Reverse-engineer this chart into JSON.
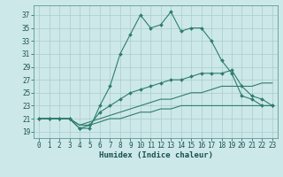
{
  "title": "",
  "xlabel": "Humidex (Indice chaleur)",
  "ylabel": "",
  "bg_color": "#cde8e8",
  "line_color": "#2e7d6e",
  "grid_color": "#aacccc",
  "x_ticks": [
    0,
    1,
    2,
    3,
    4,
    5,
    6,
    7,
    8,
    9,
    10,
    11,
    12,
    13,
    14,
    15,
    16,
    17,
    18,
    19,
    20,
    21,
    22,
    23
  ],
  "y_ticks": [
    19,
    21,
    23,
    25,
    27,
    29,
    31,
    33,
    35,
    37
  ],
  "ylim": [
    18.0,
    38.5
  ],
  "xlim": [
    -0.5,
    23.5
  ],
  "series": [
    [
      21,
      21,
      21,
      21,
      19.5,
      19.5,
      23,
      26,
      31,
      34,
      37,
      35,
      35.5,
      37.5,
      34.5,
      35,
      35,
      33,
      30,
      28,
      24.5,
      24,
      23,
      23
    ],
    [
      21,
      21,
      21,
      21,
      19.5,
      20,
      22,
      23,
      24,
      25,
      25.5,
      26,
      26.5,
      27,
      27,
      27.5,
      28,
      28,
      28,
      28.5,
      26,
      24.5,
      24,
      23
    ],
    [
      21,
      21,
      21,
      21,
      20,
      20.5,
      21,
      21.5,
      22,
      22.5,
      23,
      23.5,
      24,
      24,
      24.5,
      25,
      25,
      25.5,
      26,
      26,
      26,
      26,
      26.5,
      26.5
    ],
    [
      21,
      21,
      21,
      21,
      20,
      20,
      20.5,
      21,
      21,
      21.5,
      22,
      22,
      22.5,
      22.5,
      23,
      23,
      23,
      23,
      23,
      23,
      23,
      23,
      23,
      23
    ]
  ],
  "markers": [
    true,
    true,
    false,
    false
  ]
}
